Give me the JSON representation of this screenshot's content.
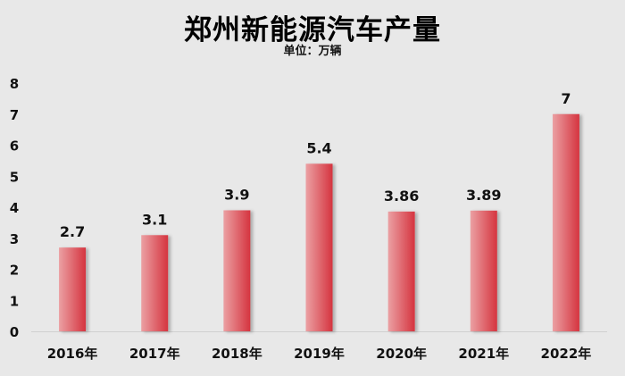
{
  "chart_data": {
    "type": "bar",
    "title": "郑州新能源汽车产量",
    "subtitle": "单位：万辆",
    "categories": [
      "2016年",
      "2017年",
      "2018年",
      "2019年",
      "2020年",
      "2021年",
      "2022年"
    ],
    "values": [
      2.7,
      3.1,
      3.9,
      5.4,
      3.86,
      3.89,
      7
    ],
    "value_labels": [
      "2.7",
      "3.1",
      "3.9",
      "5.4",
      "3.86",
      "3.89",
      "7"
    ],
    "ylim": [
      0,
      8
    ],
    "yticks": [
      0,
      1,
      2,
      3,
      4,
      5,
      6,
      7,
      8
    ],
    "xlabel": "",
    "ylabel": "",
    "grid": false,
    "legend": "none",
    "colors": {
      "bar_light": "#eba0a3",
      "bar_dark": "#d5343f",
      "background": "#e8e8e8",
      "axis": "#d0d0d0"
    }
  }
}
